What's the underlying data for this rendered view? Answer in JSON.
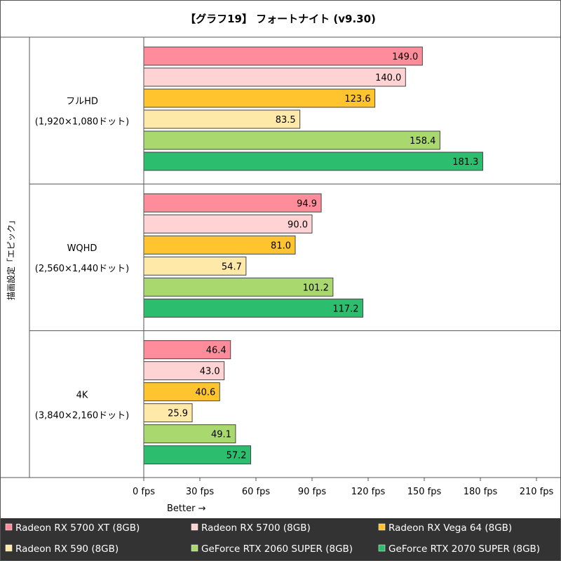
{
  "chart_data": {
    "type": "bar",
    "orientation": "horizontal",
    "title": "【グラフ19】 フォートナイト (v9.30)",
    "ylabel": "描画設定「エピック」",
    "better_label": "Better →",
    "xlim": [
      0,
      210
    ],
    "x_ticks": [
      0,
      30,
      60,
      90,
      120,
      150,
      180,
      210
    ],
    "x_unit": "fps",
    "categories": [
      {
        "name": "フルHD",
        "resolution": "(1,920×1,080ドット)"
      },
      {
        "name": "WQHD",
        "resolution": "(2,560×1,440ドット)"
      },
      {
        "name": "4K",
        "resolution": "(3,840×2,160ドット)"
      }
    ],
    "series": [
      {
        "name": "Radeon RX 5700 XT (8GB)",
        "color": "#ff8c9a",
        "values": [
          149.0,
          94.9,
          46.4
        ]
      },
      {
        "name": "Radeon RX 5700 (8GB)",
        "color": "#ffd3d3",
        "values": [
          140.0,
          90.0,
          43.0
        ]
      },
      {
        "name": "Radeon RX Vega 64 (8GB)",
        "color": "#ffc42e",
        "values": [
          123.6,
          81.0,
          40.6
        ]
      },
      {
        "name": "Radeon RX 590 (8GB)",
        "color": "#ffe9a8",
        "values": [
          83.5,
          54.7,
          25.9
        ]
      },
      {
        "name": "GeForce RTX 2060 SUPER (8GB)",
        "color": "#a9d96e",
        "values": [
          158.4,
          101.2,
          49.1
        ]
      },
      {
        "name": "GeForce RTX 2070 SUPER (8GB)",
        "color": "#2dbd6e",
        "values": [
          181.3,
          117.2,
          57.2
        ]
      }
    ],
    "grid": false,
    "legend_position": "bottom"
  },
  "colors": {
    "legend_background": "#333333",
    "legend_text": "#ffffff",
    "border": "#555555",
    "bar_border": "#444444"
  }
}
